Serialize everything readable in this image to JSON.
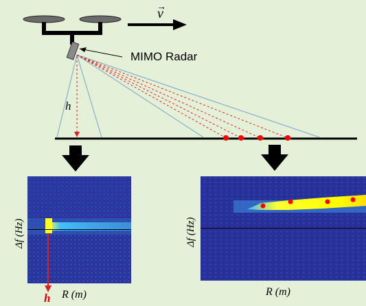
{
  "labels": {
    "velocity": "v",
    "velocity_arrow": "→",
    "radar": "MIMO Radar",
    "height": "h",
    "height_bottom": "h"
  },
  "panels": {
    "left": {
      "y_label": "Δf (Hz)",
      "x_label": "R (m)"
    },
    "right": {
      "y_label": "Δf (Hz)",
      "x_label": "R (m)"
    }
  },
  "colors": {
    "background": "#e5f0d9",
    "heatmap_low": "#2a2f9a",
    "heatmap_high": "#ffff00",
    "target_point": "#ff0000",
    "beam_line": "#8fb3c8",
    "height_line": "#ff0000"
  },
  "icons": {
    "drone": "drone-icon",
    "radar": "radar-sensor-icon",
    "arrow_down": "down-arrow-icon"
  }
}
